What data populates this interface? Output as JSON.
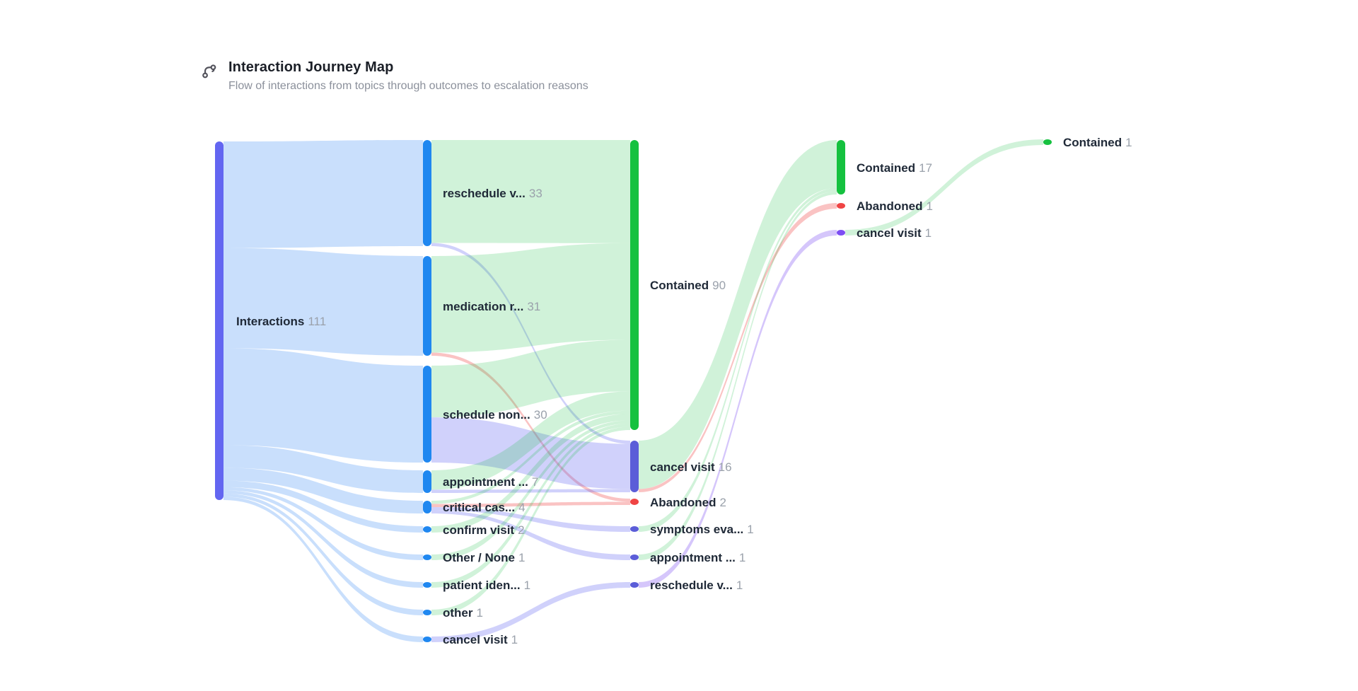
{
  "header": {
    "title": "Interaction Journey Map",
    "subtitle": "Flow of interactions from topics through outcomes to escalation reasons",
    "icon": "journey-route-icon"
  },
  "colors": {
    "title": "#1b1f27",
    "subtitle": "#8b909b",
    "icon": "#52525b",
    "label_text": "#1f2937",
    "label_value": "#9aa1ab",
    "node_interactions": "#6366f1",
    "node_topic": "#1f87f0",
    "node_contained": "#15c13f",
    "node_abandoned": "#ef4444",
    "node_escalation": "#5b5dd8",
    "node_escalation_violet": "#7c4df3",
    "ribbon_blue": "rgba(56,138,245,0.27)",
    "ribbon_green": "rgba(22,191,64,0.20)",
    "ribbon_indigo": "rgba(99,102,241,0.30)",
    "ribbon_red": "rgba(239,68,68,0.32)",
    "ribbon_violet": "rgba(124,77,243,0.32)"
  },
  "chart_data": {
    "type": "sankey",
    "title": "Interaction Journey Map",
    "stages": [
      "interactions",
      "topics",
      "outcomes",
      "outcomes-2",
      "outcomes-3"
    ],
    "nodes": [
      {
        "id": "interactions",
        "stage": 0,
        "label": "Interactions",
        "value": 111,
        "color": "node_interactions"
      },
      {
        "id": "reschedule_v1",
        "stage": 1,
        "label": "reschedule v...",
        "value": 33,
        "color": "node_topic"
      },
      {
        "id": "medication_r1",
        "stage": 1,
        "label": "medication r...",
        "value": 31,
        "color": "node_topic"
      },
      {
        "id": "schedule_non1",
        "stage": 1,
        "label": "schedule non...",
        "value": 30,
        "color": "node_topic"
      },
      {
        "id": "appointment_1",
        "stage": 1,
        "label": "appointment ...",
        "value": 7,
        "color": "node_topic"
      },
      {
        "id": "critical_cas1",
        "stage": 1,
        "label": "critical cas...",
        "value": 4,
        "color": "node_topic"
      },
      {
        "id": "confirm_visit1",
        "stage": 1,
        "label": "confirm visit",
        "value": 2,
        "color": "node_topic"
      },
      {
        "id": "other_none1",
        "stage": 1,
        "label": "Other / None",
        "value": 1,
        "color": "node_topic"
      },
      {
        "id": "patient_iden1",
        "stage": 1,
        "label": "patient iden...",
        "value": 1,
        "color": "node_topic"
      },
      {
        "id": "other1",
        "stage": 1,
        "label": "other",
        "value": 1,
        "color": "node_topic"
      },
      {
        "id": "cancel_visit1",
        "stage": 1,
        "label": "cancel visit",
        "value": 1,
        "color": "node_topic"
      },
      {
        "id": "contained_2",
        "stage": 2,
        "label": "Contained",
        "value": 90,
        "color": "node_contained"
      },
      {
        "id": "cancel_visit_2",
        "stage": 2,
        "label": "cancel visit",
        "value": 16,
        "color": "node_escalation"
      },
      {
        "id": "abandoned_2",
        "stage": 2,
        "label": "Abandoned",
        "value": 2,
        "color": "node_abandoned"
      },
      {
        "id": "symptoms_eva_2",
        "stage": 2,
        "label": "symptoms eva...",
        "value": 1,
        "color": "node_escalation"
      },
      {
        "id": "appointment_2",
        "stage": 2,
        "label": "appointment ...",
        "value": 1,
        "color": "node_escalation"
      },
      {
        "id": "reschedule_v_2",
        "stage": 2,
        "label": "reschedule v...",
        "value": 1,
        "color": "node_escalation"
      },
      {
        "id": "contained_3",
        "stage": 3,
        "label": "Contained",
        "value": 17,
        "color": "node_contained"
      },
      {
        "id": "abandoned_3",
        "stage": 3,
        "label": "Abandoned",
        "value": 1,
        "color": "node_abandoned"
      },
      {
        "id": "cancel_visit_3",
        "stage": 3,
        "label": "cancel visit",
        "value": 1,
        "color": "node_escalation_violet"
      },
      {
        "id": "contained_4",
        "stage": 4,
        "label": "Contained",
        "value": 1,
        "color": "node_contained"
      }
    ],
    "links": [
      {
        "source": "interactions",
        "target": "reschedule_v1",
        "value": 33,
        "color": "blue"
      },
      {
        "source": "interactions",
        "target": "medication_r1",
        "value": 31,
        "color": "blue"
      },
      {
        "source": "interactions",
        "target": "schedule_non1",
        "value": 30,
        "color": "blue"
      },
      {
        "source": "interactions",
        "target": "appointment_1",
        "value": 7,
        "color": "blue"
      },
      {
        "source": "interactions",
        "target": "critical_cas1",
        "value": 4,
        "color": "blue"
      },
      {
        "source": "interactions",
        "target": "confirm_visit1",
        "value": 2,
        "color": "blue"
      },
      {
        "source": "interactions",
        "target": "other_none1",
        "value": 1,
        "color": "blue"
      },
      {
        "source": "interactions",
        "target": "patient_iden1",
        "value": 1,
        "color": "blue"
      },
      {
        "source": "interactions",
        "target": "other1",
        "value": 1,
        "color": "blue"
      },
      {
        "source": "interactions",
        "target": "cancel_visit1",
        "value": 1,
        "color": "blue"
      },
      {
        "source": "reschedule_v1",
        "target": "contained_2",
        "value": 32,
        "color": "green"
      },
      {
        "source": "reschedule_v1",
        "target": "cancel_visit_2",
        "value": 1,
        "color": "indigo"
      },
      {
        "source": "medication_r1",
        "target": "contained_2",
        "value": 30,
        "color": "green"
      },
      {
        "source": "medication_r1",
        "target": "abandoned_2",
        "value": 1,
        "color": "red"
      },
      {
        "source": "schedule_non1",
        "target": "contained_2",
        "value": 16,
        "color": "green"
      },
      {
        "source": "schedule_non1",
        "target": "cancel_visit_2",
        "value": 14,
        "color": "indigo"
      },
      {
        "source": "appointment_1",
        "target": "contained_2",
        "value": 6,
        "color": "green"
      },
      {
        "source": "appointment_1",
        "target": "cancel_visit_2",
        "value": 1,
        "color": "indigo"
      },
      {
        "source": "critical_cas1",
        "target": "contained_2",
        "value": 1,
        "color": "green"
      },
      {
        "source": "critical_cas1",
        "target": "abandoned_2",
        "value": 1,
        "color": "red"
      },
      {
        "source": "critical_cas1",
        "target": "symptoms_eva_2",
        "value": 1,
        "color": "indigo"
      },
      {
        "source": "critical_cas1",
        "target": "appointment_2",
        "value": 1,
        "color": "indigo"
      },
      {
        "source": "confirm_visit1",
        "target": "contained_2",
        "value": 2,
        "color": "green"
      },
      {
        "source": "other_none1",
        "target": "contained_2",
        "value": 1,
        "color": "green"
      },
      {
        "source": "patient_iden1",
        "target": "contained_2",
        "value": 1,
        "color": "green"
      },
      {
        "source": "other1",
        "target": "contained_2",
        "value": 1,
        "color": "green"
      },
      {
        "source": "cancel_visit1",
        "target": "reschedule_v_2",
        "value": 1,
        "color": "indigo"
      },
      {
        "source": "cancel_visit_2",
        "target": "contained_3",
        "value": 15,
        "color": "green"
      },
      {
        "source": "cancel_visit_2",
        "target": "abandoned_3",
        "value": 1,
        "color": "red"
      },
      {
        "source": "symptoms_eva_2",
        "target": "contained_3",
        "value": 1,
        "color": "green"
      },
      {
        "source": "appointment_2",
        "target": "contained_3",
        "value": 1,
        "color": "green"
      },
      {
        "source": "reschedule_v_2",
        "target": "cancel_visit_3",
        "value": 1,
        "color": "violet"
      },
      {
        "source": "cancel_visit_3",
        "target": "contained_4",
        "value": 1,
        "color": "green"
      }
    ]
  }
}
